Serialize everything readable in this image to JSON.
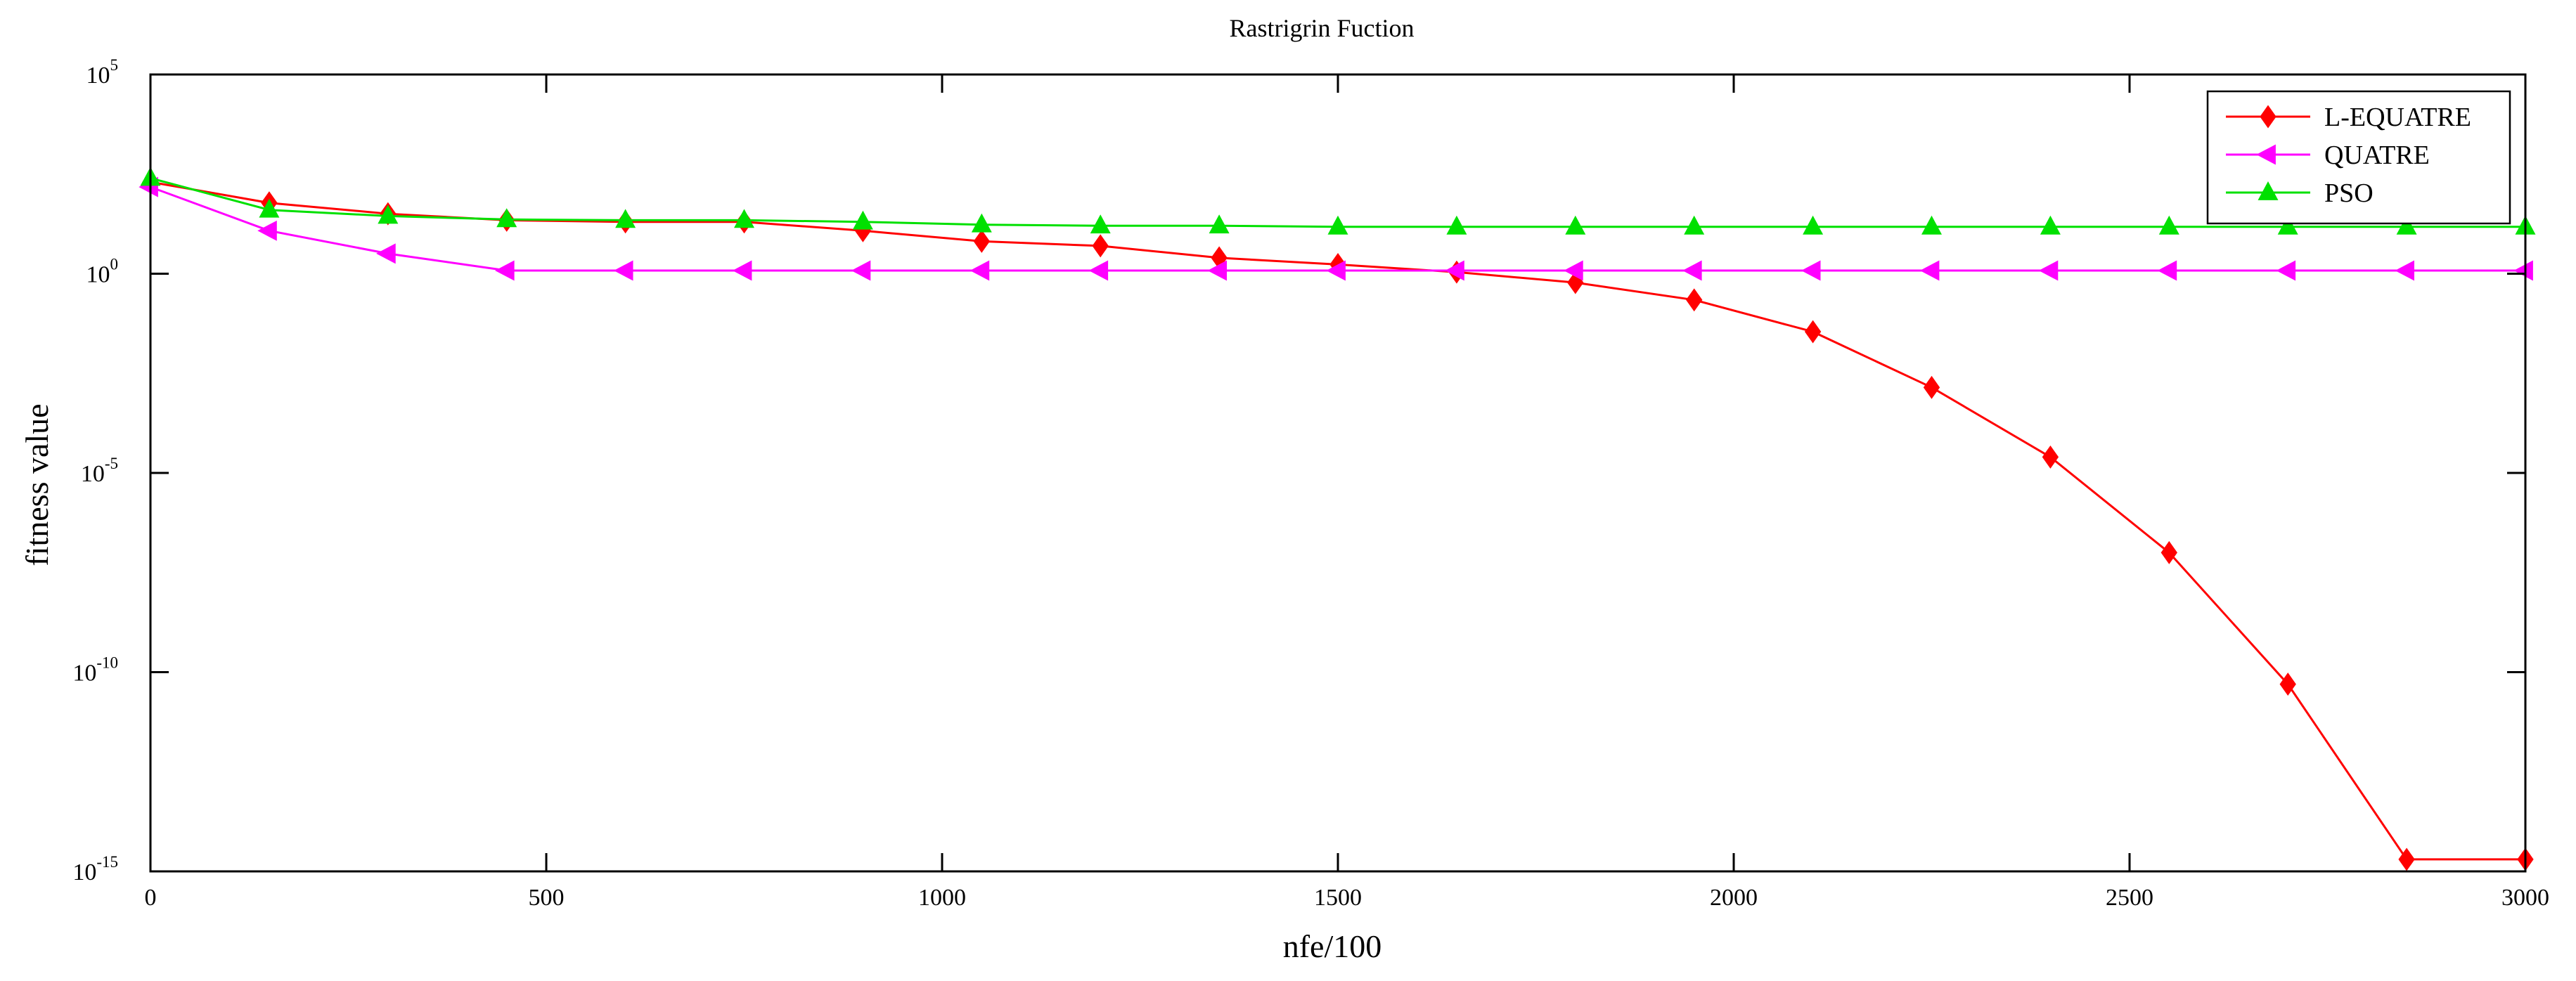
{
  "chart_data": {
    "type": "line",
    "title": "Rastrigrin Fuction",
    "xlabel": "nfe/100",
    "ylabel": "fitness value",
    "xlim": [
      0,
      3000
    ],
    "ylim_log10": [
      -15,
      5
    ],
    "yscale": "log",
    "grid": false,
    "legend_position": "top-right",
    "x_ticks": [
      {
        "value": 0,
        "label": "0"
      },
      {
        "value": 500,
        "label": "500"
      },
      {
        "value": 1000,
        "label": "1000"
      },
      {
        "value": 1500,
        "label": "1500"
      },
      {
        "value": 2000,
        "label": "2000"
      },
      {
        "value": 2500,
        "label": "2500"
      },
      {
        "value": 3000,
        "label": "3000"
      }
    ],
    "y_ticks": [
      {
        "exp": 5,
        "base": "10",
        "sup": "5"
      },
      {
        "exp": 0,
        "base": "10",
        "sup": "0"
      },
      {
        "exp": -5,
        "base": "10",
        "sup": "-5"
      },
      {
        "exp": -10,
        "base": "10",
        "sup": "-10"
      },
      {
        "exp": -15,
        "base": "10",
        "sup": "-15"
      }
    ],
    "x": [
      0,
      150,
      300,
      450,
      600,
      750,
      900,
      1050,
      1200,
      1350,
      1500,
      1650,
      1800,
      1950,
      2100,
      2250,
      2400,
      2550,
      2700,
      2850,
      3000
    ],
    "series": [
      {
        "name": "L-EQUATRE",
        "color": "#ff0000",
        "marker": "diamond",
        "y": [
          200,
          60,
          32,
          22,
          20,
          20,
          12,
          6.5,
          5,
          2.5,
          1.7,
          1.1,
          0.6,
          0.22,
          0.035,
          0.0014,
          2.5e-05,
          1e-07,
          5e-11,
          2e-15,
          2e-15
        ]
      },
      {
        "name": "QUATRE",
        "color": "#ff00ff",
        "marker": "triangle-left",
        "y": [
          150,
          12,
          3.2,
          1.2,
          1.2,
          1.2,
          1.2,
          1.2,
          1.2,
          1.2,
          1.2,
          1.2,
          1.2,
          1.2,
          1.2,
          1.2,
          1.2,
          1.2,
          1.2,
          1.2,
          1.2
        ]
      },
      {
        "name": "PSO",
        "color": "#00e000",
        "marker": "triangle-up",
        "y": [
          250,
          40,
          28,
          23,
          22,
          22,
          20,
          17,
          16,
          16,
          15,
          15,
          15,
          15,
          15,
          15,
          15,
          15,
          15,
          15,
          15
        ]
      }
    ]
  }
}
